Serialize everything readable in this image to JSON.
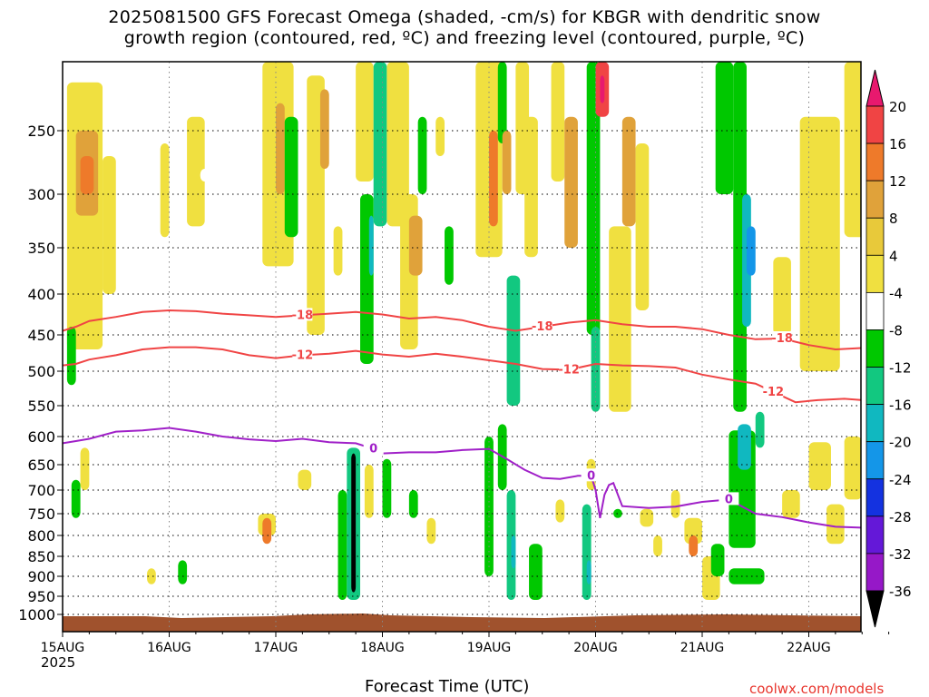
{
  "title": {
    "line1": "2025081500 GFS Forecast Omega (shaded, -cm/s) for KBGR with dendritic snow",
    "line2": "growth region (contoured, red, ºC) and freezing level (contoured, purple, ºC)"
  },
  "credit": "coolwx.com/models",
  "chart_data": {
    "type": "heatmap",
    "xlabel": "Forecast Time (UTC)",
    "x_year_label": "2025",
    "x_ticks": [
      {
        "label": "15AUG",
        "hour": 0
      },
      {
        "label": "16AUG",
        "hour": 24
      },
      {
        "label": "17AUG",
        "hour": 48
      },
      {
        "label": "18AUG",
        "hour": 72
      },
      {
        "label": "19AUG",
        "hour": 96
      },
      {
        "label": "20AUG",
        "hour": 120
      },
      {
        "label": "21AUG",
        "hour": 144
      },
      {
        "label": "22AUG",
        "hour": 168
      }
    ],
    "xlim": [
      0,
      186
    ],
    "y_ticks": [
      250,
      300,
      350,
      400,
      450,
      500,
      550,
      600,
      650,
      700,
      750,
      800,
      850,
      900,
      950,
      1000
    ],
    "ylim": [
      1025,
      200
    ],
    "ylabel": "",
    "grid": true,
    "colorbar": {
      "position": "right",
      "levels": [
        20,
        16,
        12,
        8,
        4,
        -4,
        -8,
        -12,
        -16,
        -20,
        -24,
        -28,
        -32,
        -36
      ],
      "colors": [
        "#e8196e",
        "#f04444",
        "#ee7a2a",
        "#e0a23a",
        "#e8c93a",
        "#f0e040",
        "#ffffff",
        "#00c800",
        "#12c880",
        "#10b8c0",
        "#1496e8",
        "#1432e0",
        "#6418d8",
        "#9618c8",
        "#b0b0b0",
        "#000000"
      ]
    },
    "contours": [
      {
        "label": "-18",
        "color": "#f04444",
        "points": [
          [
            0,
            445
          ],
          [
            3,
            440
          ],
          [
            6,
            433
          ],
          [
            12,
            428
          ],
          [
            18,
            422
          ],
          [
            24,
            420
          ],
          [
            30,
            421
          ],
          [
            36,
            424
          ],
          [
            42,
            426
          ],
          [
            48,
            428
          ],
          [
            54,
            426
          ],
          [
            60,
            424
          ],
          [
            66,
            422
          ],
          [
            72,
            425
          ],
          [
            78,
            430
          ],
          [
            84,
            428
          ],
          [
            90,
            432
          ],
          [
            96,
            440
          ],
          [
            102,
            445
          ],
          [
            108,
            440
          ],
          [
            114,
            435
          ],
          [
            120,
            432
          ],
          [
            126,
            437
          ],
          [
            132,
            440
          ],
          [
            138,
            440
          ],
          [
            144,
            443
          ],
          [
            150,
            450
          ],
          [
            156,
            456
          ],
          [
            162,
            455
          ],
          [
            168,
            464
          ],
          [
            174,
            470
          ],
          [
            180,
            468
          ],
          [
            186,
            470
          ]
        ]
      },
      {
        "label": "-12",
        "color": "#f04444",
        "points": [
          [
            0,
            492
          ],
          [
            3,
            490
          ],
          [
            6,
            484
          ],
          [
            12,
            478
          ],
          [
            18,
            470
          ],
          [
            24,
            467
          ],
          [
            30,
            467
          ],
          [
            36,
            470
          ],
          [
            42,
            478
          ],
          [
            48,
            482
          ],
          [
            54,
            478
          ],
          [
            60,
            476
          ],
          [
            66,
            472
          ],
          [
            72,
            477
          ],
          [
            78,
            480
          ],
          [
            84,
            476
          ],
          [
            90,
            480
          ],
          [
            96,
            485
          ],
          [
            102,
            490
          ],
          [
            108,
            497
          ],
          [
            114,
            498
          ],
          [
            120,
            490
          ],
          [
            126,
            492
          ],
          [
            132,
            493
          ],
          [
            138,
            495
          ],
          [
            144,
            505
          ],
          [
            150,
            512
          ],
          [
            156,
            518
          ],
          [
            160,
            530
          ],
          [
            165,
            545
          ],
          [
            170,
            542
          ],
          [
            176,
            540
          ],
          [
            180,
            542
          ],
          [
            186,
            544
          ]
        ]
      },
      {
        "label": "0",
        "color": "#a020c8",
        "points": [
          [
            0,
            612
          ],
          [
            3,
            608
          ],
          [
            6,
            604
          ],
          [
            12,
            592
          ],
          [
            18,
            590
          ],
          [
            24,
            586
          ],
          [
            30,
            592
          ],
          [
            36,
            600
          ],
          [
            42,
            605
          ],
          [
            48,
            608
          ],
          [
            54,
            604
          ],
          [
            60,
            610
          ],
          [
            66,
            612
          ],
          [
            70,
            622
          ],
          [
            72,
            630
          ],
          [
            78,
            628
          ],
          [
            84,
            628
          ],
          [
            90,
            624
          ],
          [
            96,
            622
          ],
          [
            100,
            640
          ],
          [
            104,
            660
          ],
          [
            108,
            676
          ],
          [
            112,
            678
          ],
          [
            116,
            672
          ],
          [
            119,
            672
          ],
          [
            120,
            700
          ],
          [
            121,
            760
          ],
          [
            122,
            710
          ],
          [
            123,
            690
          ],
          [
            124,
            686
          ],
          [
            126,
            734
          ],
          [
            132,
            738
          ],
          [
            138,
            735
          ],
          [
            144,
            725
          ],
          [
            150,
            720
          ],
          [
            156,
            750
          ],
          [
            162,
            758
          ],
          [
            168,
            770
          ],
          [
            174,
            780
          ],
          [
            180,
            782
          ],
          [
            186,
            782
          ]
        ]
      }
    ],
    "omega_areas_note": "shaded omega fields; values in -cm/s"
  }
}
